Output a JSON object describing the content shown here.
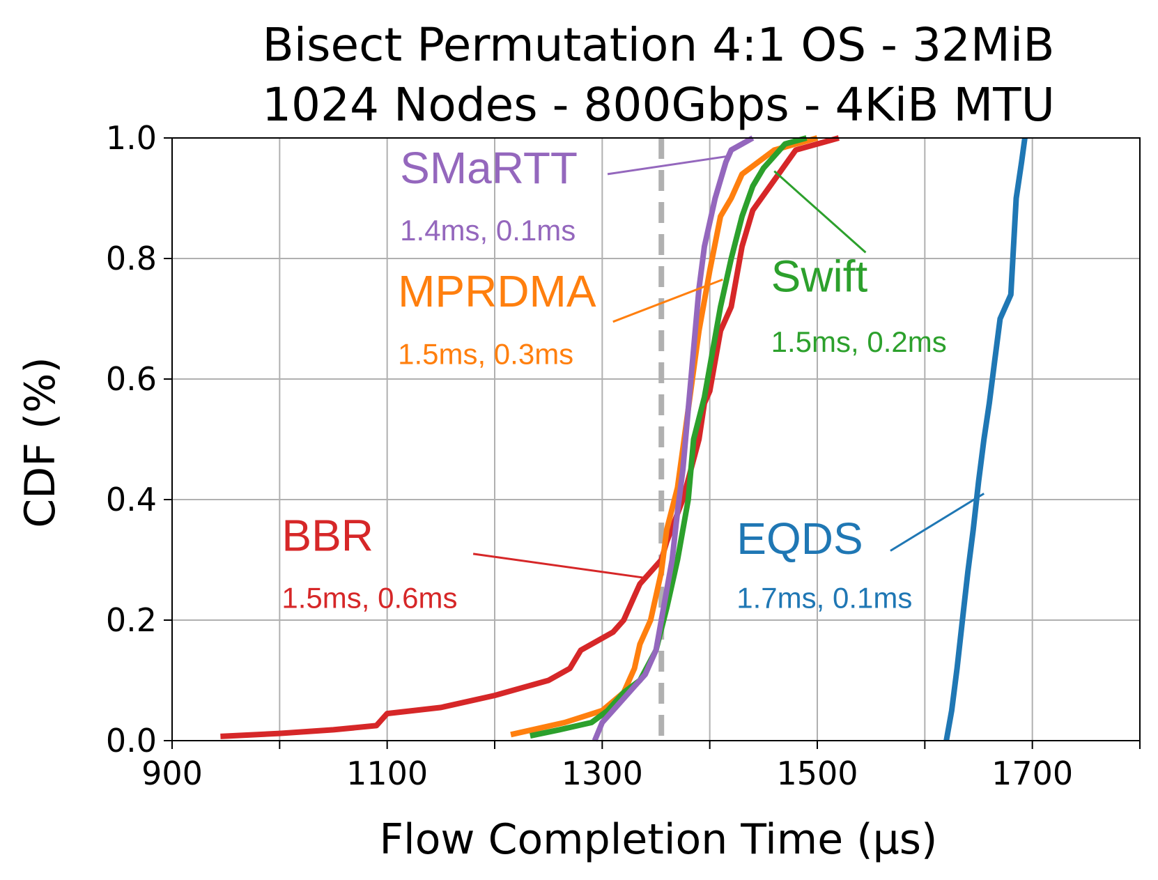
{
  "chart_data": {
    "type": "line",
    "title": [
      "Bisect Permutation 4:1 OS - 32MiB",
      "1024 Nodes - 800Gbps - 4KiB MTU"
    ],
    "xlabel": "Flow Completion Time (µs)",
    "ylabel": "CDF (%)",
    "xlim": [
      900,
      1800
    ],
    "ylim": [
      0.0,
      1.0
    ],
    "xticks": [
      900,
      1000,
      1100,
      1200,
      1300,
      1400,
      1500,
      1600,
      1700,
      1800
    ],
    "xtick_labels": [
      "900",
      "",
      "1100",
      "",
      "1300",
      "",
      "1500",
      "",
      "1700",
      ""
    ],
    "yticks": [
      0.0,
      0.2,
      0.4,
      0.6,
      0.8,
      1.0
    ],
    "ytick_labels": [
      "0.0",
      "0.2",
      "0.4",
      "0.6",
      "0.8",
      "1.0"
    ],
    "grid": true,
    "reference_line": {
      "x": 1355,
      "color": "#b0b0b0",
      "style": "dashed"
    },
    "series": [
      {
        "name": "BBR",
        "color": "#d62728",
        "stats": "1.5ms, 0.6ms",
        "x": [
          945,
          1000,
          1050,
          1090,
          1095,
          1100,
          1150,
          1200,
          1250,
          1270,
          1280,
          1310,
          1320,
          1330,
          1335,
          1355,
          1360,
          1375,
          1390,
          1395,
          1400,
          1410,
          1420,
          1430,
          1440,
          1460,
          1480,
          1520
        ],
        "y": [
          0.007,
          0.012,
          0.018,
          0.025,
          0.035,
          0.045,
          0.055,
          0.075,
          0.1,
          0.12,
          0.15,
          0.18,
          0.2,
          0.24,
          0.26,
          0.3,
          0.33,
          0.4,
          0.5,
          0.56,
          0.58,
          0.68,
          0.72,
          0.82,
          0.88,
          0.93,
          0.98,
          1.0
        ]
      },
      {
        "name": "MPRDMA",
        "color": "#ff7f0e",
        "stats": "1.5ms, 0.3ms",
        "x": [
          1215,
          1240,
          1265,
          1300,
          1320,
          1330,
          1335,
          1345,
          1355,
          1360,
          1370,
          1380,
          1390,
          1400,
          1410,
          1420,
          1430,
          1460,
          1500
        ],
        "y": [
          0.01,
          0.02,
          0.03,
          0.05,
          0.08,
          0.12,
          0.16,
          0.2,
          0.28,
          0.35,
          0.42,
          0.55,
          0.68,
          0.78,
          0.87,
          0.9,
          0.94,
          0.98,
          1.0
        ]
      },
      {
        "name": "Swift",
        "color": "#2ca02c",
        "stats": "1.5ms, 0.2ms",
        "x": [
          1233,
          1260,
          1290,
          1305,
          1320,
          1335,
          1350,
          1360,
          1370,
          1380,
          1385,
          1395,
          1400,
          1410,
          1420,
          1430,
          1440,
          1450,
          1460,
          1470,
          1490
        ],
        "y": [
          0.008,
          0.018,
          0.03,
          0.05,
          0.08,
          0.1,
          0.15,
          0.22,
          0.3,
          0.4,
          0.5,
          0.57,
          0.62,
          0.72,
          0.8,
          0.87,
          0.92,
          0.95,
          0.97,
          0.99,
          1.0
        ]
      },
      {
        "name": "SMaRTT",
        "color": "#9467bd",
        "stats": "1.4ms, 0.1ms",
        "x": [
          1293,
          1300,
          1315,
          1330,
          1340,
          1350,
          1355,
          1360,
          1365,
          1370,
          1375,
          1380,
          1385,
          1390,
          1395,
          1400,
          1405,
          1410,
          1415,
          1420,
          1430,
          1440
        ],
        "y": [
          0.0,
          0.03,
          0.06,
          0.09,
          0.11,
          0.15,
          0.2,
          0.25,
          0.3,
          0.38,
          0.45,
          0.55,
          0.65,
          0.75,
          0.82,
          0.86,
          0.9,
          0.93,
          0.96,
          0.98,
          0.99,
          1.0
        ]
      },
      {
        "name": "EQDS",
        "color": "#1f77b4",
        "stats": "1.7ms, 0.1ms",
        "x": [
          1620,
          1625,
          1630,
          1635,
          1640,
          1645,
          1650,
          1655,
          1660,
          1665,
          1670,
          1680,
          1685,
          1690,
          1693
        ],
        "y": [
          0.0,
          0.05,
          0.12,
          0.2,
          0.28,
          0.35,
          0.43,
          0.5,
          0.56,
          0.63,
          0.7,
          0.74,
          0.9,
          0.96,
          1.0
        ]
      }
    ],
    "annotations": [
      {
        "series": "SMaRTT",
        "name": "SMaRTT",
        "stats": "1.4ms, 0.1ms",
        "color": "#9467bd",
        "label_xy": [
          1112,
          0.925
        ],
        "stats_xy": [
          1112,
          0.83
        ],
        "line_from": [
          1305,
          0.94
        ],
        "line_to": [
          1418,
          0.97
        ]
      },
      {
        "series": "MPRDMA",
        "name": "MPRDMA",
        "stats": "1.5ms, 0.3ms",
        "color": "#ff7f0e",
        "label_xy": [
          1110,
          0.72
        ],
        "stats_xy": [
          1110,
          0.625
        ],
        "line_from": [
          1310,
          0.695
        ],
        "line_to": [
          1412,
          0.765
        ]
      },
      {
        "series": "Swift",
        "name": "Swift",
        "stats": "1.5ms, 0.2ms",
        "color": "#2ca02c",
        "label_xy": [
          1457,
          0.745
        ],
        "stats_xy": [
          1457,
          0.645
        ],
        "line_from": [
          1545,
          0.81
        ],
        "line_to": [
          1460,
          0.945
        ]
      },
      {
        "series": "BBR",
        "name": "BBR",
        "stats": "1.5ms, 0.6ms",
        "color": "#d62728",
        "label_xy": [
          1002,
          0.315
        ],
        "stats_xy": [
          1002,
          0.22
        ],
        "line_from": [
          1180,
          0.31
        ],
        "line_to": [
          1340,
          0.27
        ]
      },
      {
        "series": "EQDS",
        "name": "EQDS",
        "stats": "1.7ms, 0.1ms",
        "color": "#1f77b4",
        "label_xy": [
          1425,
          0.31
        ],
        "stats_xy": [
          1425,
          0.22
        ],
        "line_from": [
          1568,
          0.315
        ],
        "line_to": [
          1655,
          0.41
        ]
      }
    ]
  }
}
